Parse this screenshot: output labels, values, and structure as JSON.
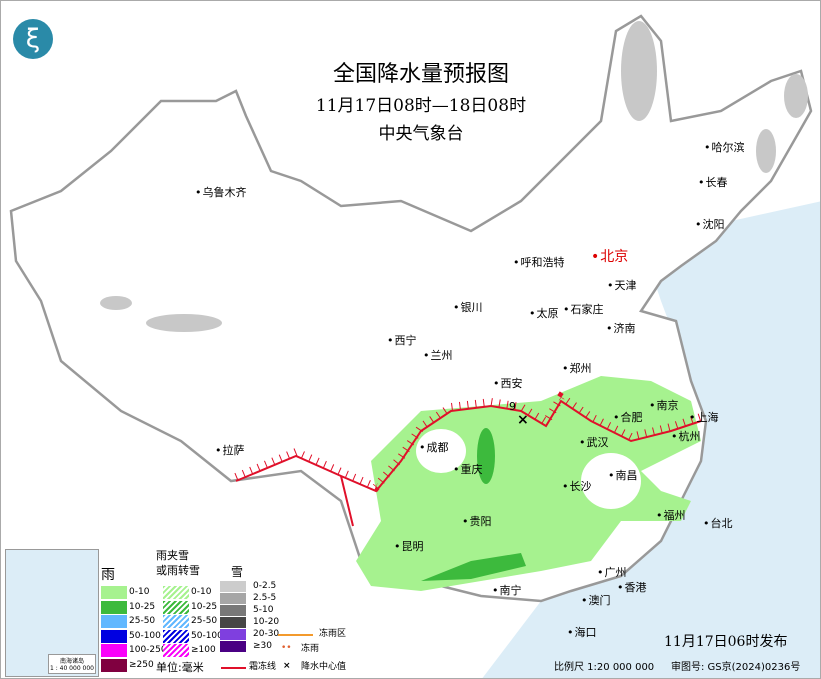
{
  "header": {
    "title": "全国降水量预报图",
    "period": "11月17日08时—18日08时",
    "agency": "中央气象台",
    "logo_icon": "cma-logo-icon"
  },
  "cities": [
    {
      "name": "乌鲁木齐"
    },
    {
      "name": "哈尔滨"
    },
    {
      "name": "长春"
    },
    {
      "name": "沈阳"
    },
    {
      "name": "呼和浩特"
    },
    {
      "name": "北京"
    },
    {
      "name": "天津"
    },
    {
      "name": "银川"
    },
    {
      "name": "太原"
    },
    {
      "name": "石家庄"
    },
    {
      "name": "西宁"
    },
    {
      "name": "兰州"
    },
    {
      "name": "济南"
    },
    {
      "name": "郑州"
    },
    {
      "name": "西安"
    },
    {
      "name": "合肥"
    },
    {
      "name": "南京"
    },
    {
      "name": "上海"
    },
    {
      "name": "成都"
    },
    {
      "name": "重庆"
    },
    {
      "name": "武汉"
    },
    {
      "name": "杭州"
    },
    {
      "name": "拉萨"
    },
    {
      "name": "南昌"
    },
    {
      "name": "长沙"
    },
    {
      "name": "福州"
    },
    {
      "name": "台北"
    },
    {
      "name": "贵阳"
    },
    {
      "name": "昆明"
    },
    {
      "name": "南宁"
    },
    {
      "name": "广州"
    },
    {
      "name": "澳门"
    },
    {
      "name": "香港"
    },
    {
      "name": "海口"
    }
  ],
  "precip_center": {
    "value": "9"
  },
  "legend": {
    "rain": {
      "title": "雨",
      "items": [
        "0-10",
        "10-25",
        "25-50",
        "50-100",
        "100-250",
        "≥250"
      ],
      "colors": [
        "#a6f28f",
        "#3dba3d",
        "#61b8ff",
        "#0000e1",
        "#fa00fa",
        "#800040"
      ]
    },
    "mixed": {
      "title1": "雨夹雪",
      "title2": "或雨转雪",
      "items": [
        "0-10",
        "10-25",
        "25-50",
        "50-100",
        "≥100"
      ],
      "colors": [
        "#a6f28f",
        "#3dba3d",
        "#61b8ff",
        "#0000e1",
        "#fa00fa"
      ]
    },
    "snow": {
      "title": "雪",
      "items": [
        "0-2.5",
        "2.5-5",
        "5-10",
        "10-20",
        "20-30",
        "≥30"
      ],
      "colors": [
        "#cccccc",
        "#a6a6a6",
        "#787878",
        "#464646",
        "#7f3fdf",
        "#4a0083"
      ]
    },
    "unit": "单位:毫米",
    "freezing_rain_area": "冻雨区",
    "freezing_rain": "冻雨",
    "frost_line": "霜冻线",
    "precip_center": "降水中心值"
  },
  "inset": {
    "title": "南海诸岛",
    "scale": "1 : 40 000 000"
  },
  "footer": {
    "issued": "11月17日06时发布",
    "scale": "比例尺 1:20 000 000",
    "approval": "审图号: GS京(2024)0236号"
  }
}
